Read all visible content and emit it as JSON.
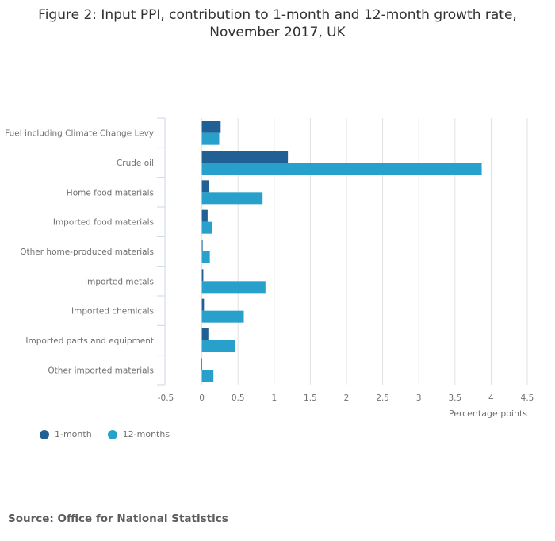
{
  "chart_data": {
    "type": "bar",
    "orientation": "horizontal",
    "title_lines": [
      "Figure 2: Input PPI, contribution to 1-month and 12-month growth rate,",
      "November 2017, UK"
    ],
    "categories": [
      "Fuel including Climate Change Levy",
      "Crude oil",
      "Home food materials",
      "Imported food materials",
      "Other home-produced materials",
      "Imported metals",
      "Imported chemicals",
      "Imported parts and equipment",
      "Other imported materials"
    ],
    "series": [
      {
        "name": "1-month",
        "color": "#206095",
        "values": [
          0.26,
          1.19,
          0.1,
          0.08,
          0.01,
          0.02,
          0.03,
          0.09,
          -0.01
        ]
      },
      {
        "name": "12-months",
        "color": "#27a0cc",
        "values": [
          0.24,
          3.87,
          0.84,
          0.14,
          0.11,
          0.88,
          0.58,
          0.46,
          0.16
        ]
      }
    ],
    "xlabel": "Percentage points",
    "ylabel": "",
    "xlim": [
      -0.5,
      4.5
    ],
    "xticks": [
      -0.5,
      0,
      0.5,
      1,
      1.5,
      2,
      2.5,
      3,
      3.5,
      4,
      4.5
    ],
    "xtick_labels": [
      "-0.5",
      "0",
      "0.5",
      "1",
      "1.5",
      "2",
      "2.5",
      "3",
      "3.5",
      "4",
      "4.5"
    ],
    "grid": "vertical",
    "legend_position": "bottom-left"
  },
  "source": "Source: Office for National Statistics"
}
